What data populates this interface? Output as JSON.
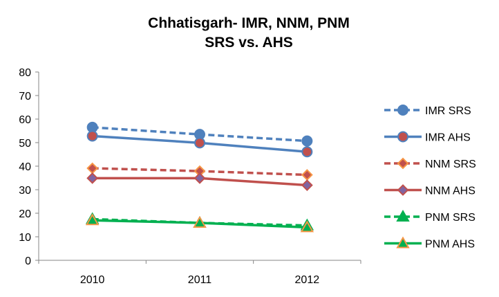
{
  "chart_data": {
    "type": "line",
    "title_lines": [
      "Chhatisgarh- IMR, NNM, PNM",
      "SRS vs. AHS"
    ],
    "categories": [
      "2010",
      "2011",
      "2012"
    ],
    "ylim": [
      0,
      80
    ],
    "yticks": [
      0,
      10,
      20,
      30,
      40,
      50,
      60,
      70,
      80
    ],
    "grid": false,
    "legend_position": "right",
    "series": [
      {
        "name": "IMR SRS",
        "values": [
          56.5,
          53.5,
          50.7
        ],
        "color": "#4f81bd",
        "dash": "dashed",
        "marker": "circle",
        "marker_fill": "#4f81bd",
        "marker_stroke": "#4f81bd"
      },
      {
        "name": "IMR AHS",
        "values": [
          52.8,
          49.9,
          46.1
        ],
        "color": "#4f81bd",
        "dash": "solid",
        "marker": "circle",
        "marker_fill": "#c0504d",
        "marker_stroke": "#4f81bd"
      },
      {
        "name": "NNM SRS",
        "values": [
          39.1,
          37.9,
          36.3
        ],
        "color": "#c0504d",
        "dash": "dashed",
        "marker": "diamond",
        "marker_fill": "#c0504d",
        "marker_stroke": "#f79646"
      },
      {
        "name": "NNM AHS",
        "values": [
          34.9,
          34.9,
          31.9
        ],
        "color": "#c0504d",
        "dash": "solid",
        "marker": "diamond",
        "marker_fill": "#8064a2",
        "marker_stroke": "#c0504d"
      },
      {
        "name": "PNM SRS",
        "values": [
          17.5,
          15.9,
          14.8
        ],
        "color": "#00b050",
        "dash": "dashed",
        "marker": "triangle",
        "marker_fill": "#00b050",
        "marker_stroke": "#00b050"
      },
      {
        "name": "PNM AHS",
        "values": [
          17.0,
          15.9,
          14.0
        ],
        "color": "#00b050",
        "dash": "solid",
        "marker": "triangle",
        "marker_fill": "#00b050",
        "marker_stroke": "#f79646"
      }
    ]
  }
}
